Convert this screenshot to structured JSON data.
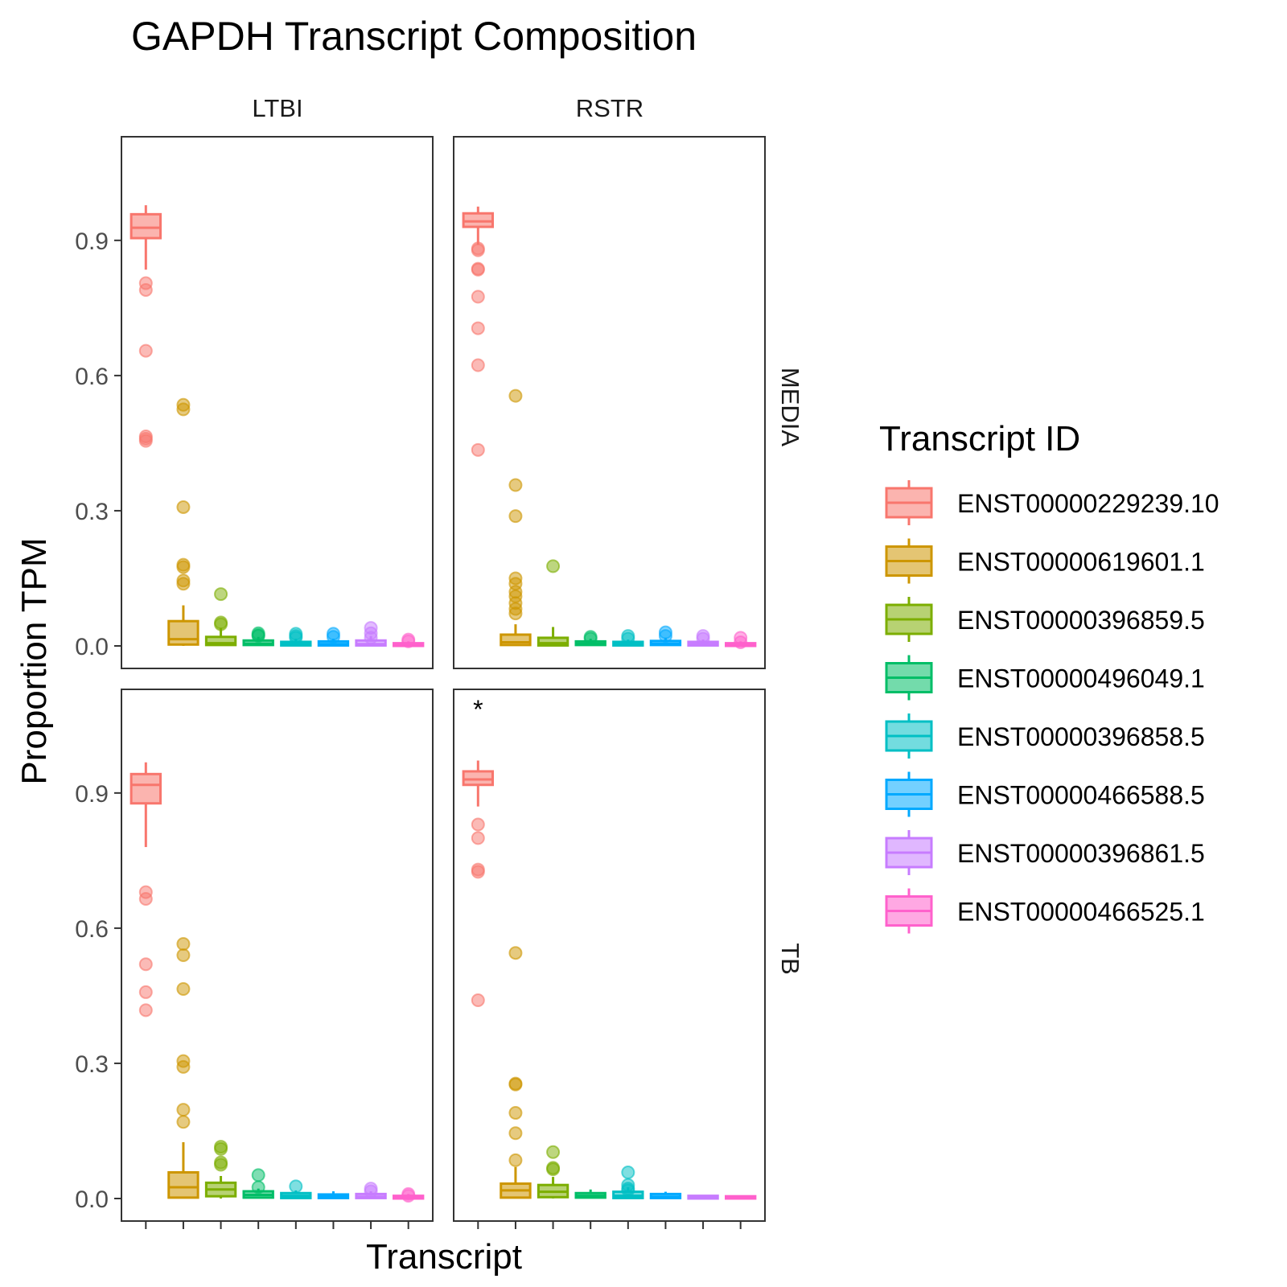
{
  "chart_data": {
    "type": "boxplot",
    "title": "GAPDH Transcript Composition",
    "xlabel": "Transcript",
    "ylabel": "Proportion TPM",
    "ylim": [
      -0.05,
      1.13
    ],
    "yticks": [
      0.0,
      0.3,
      0.6,
      0.9
    ],
    "ytick_labels": [
      "0.0",
      "0.3",
      "0.6",
      "0.9"
    ],
    "grid": false,
    "legend": {
      "title": "Transcript ID",
      "position": "right",
      "entries": [
        {
          "label": "ENST00000229239.10",
          "color": "#F8766D"
        },
        {
          "label": "ENST00000619601.1",
          "color": "#CD9600"
        },
        {
          "label": "ENST00000396859.5",
          "color": "#7CAE00"
        },
        {
          "label": "ENST00000496049.1",
          "color": "#00BE67"
        },
        {
          "label": "ENST00000396858.5",
          "color": "#00BFC4"
        },
        {
          "label": "ENST00000466588.5",
          "color": "#00A9FF"
        },
        {
          "label": "ENST00000396861.5",
          "color": "#C77CFF"
        },
        {
          "label": "ENST00000466525.1",
          "color": "#FF61CC"
        }
      ]
    },
    "facets": [
      {
        "col": "LTBI",
        "row": "MEDIA",
        "annotation": "",
        "boxes": [
          {
            "q1": 0.905,
            "median": 0.928,
            "q3": 0.958,
            "whisker_low": 0.835,
            "whisker_high": 0.978,
            "outliers": [
              0.805,
              0.79,
              0.655,
              0.465,
              0.46,
              0.455
            ]
          },
          {
            "q1": 0.003,
            "median": 0.015,
            "q3": 0.055,
            "whisker_low": 0.0,
            "whisker_high": 0.09,
            "outliers": [
              0.535,
              0.525,
              0.308,
              0.18,
              0.175,
              0.145,
              0.138
            ]
          },
          {
            "q1": 0.002,
            "median": 0.006,
            "q3": 0.02,
            "whisker_low": 0.0,
            "whisker_high": 0.04,
            "outliers": [
              0.115,
              0.052,
              0.048
            ]
          },
          {
            "q1": 0.002,
            "median": 0.005,
            "q3": 0.012,
            "whisker_low": 0.0,
            "whisker_high": 0.02,
            "outliers": [
              0.028,
              0.024,
              0.022
            ]
          },
          {
            "q1": 0.001,
            "median": 0.004,
            "q3": 0.009,
            "whisker_low": 0.0,
            "whisker_high": 0.016,
            "outliers": [
              0.027,
              0.022,
              0.018
            ]
          },
          {
            "q1": 0.001,
            "median": 0.004,
            "q3": 0.01,
            "whisker_low": 0.0,
            "whisker_high": 0.016,
            "outliers": [
              0.027,
              0.02
            ]
          },
          {
            "q1": 0.001,
            "median": 0.004,
            "q3": 0.012,
            "whisker_low": 0.0,
            "whisker_high": 0.022,
            "outliers": [
              0.04,
              0.028,
              0.018
            ]
          },
          {
            "q1": 0.0,
            "median": 0.002,
            "q3": 0.006,
            "whisker_low": 0.0,
            "whisker_high": 0.01,
            "outliers": [
              0.014,
              0.01
            ]
          }
        ]
      },
      {
        "col": "RSTR",
        "row": "MEDIA",
        "annotation": "",
        "boxes": [
          {
            "q1": 0.93,
            "median": 0.942,
            "q3": 0.96,
            "whisker_low": 0.89,
            "whisker_high": 0.975,
            "outliers": [
              0.882,
              0.878,
              0.837,
              0.835,
              0.775,
              0.705,
              0.623,
              0.435
            ]
          },
          {
            "q1": 0.002,
            "median": 0.008,
            "q3": 0.025,
            "whisker_low": 0.0,
            "whisker_high": 0.048,
            "outliers": [
              0.555,
              0.357,
              0.288,
              0.15,
              0.138,
              0.12,
              0.11,
              0.095,
              0.082,
              0.072
            ]
          },
          {
            "q1": 0.001,
            "median": 0.006,
            "q3": 0.018,
            "whisker_low": 0.0,
            "whisker_high": 0.042,
            "outliers": [
              0.177
            ]
          },
          {
            "q1": 0.002,
            "median": 0.005,
            "q3": 0.01,
            "whisker_low": 0.0,
            "whisker_high": 0.016,
            "outliers": [
              0.02,
              0.016
            ]
          },
          {
            "q1": 0.001,
            "median": 0.004,
            "q3": 0.009,
            "whisker_low": 0.0,
            "whisker_high": 0.014,
            "outliers": [
              0.022,
              0.016
            ]
          },
          {
            "q1": 0.002,
            "median": 0.005,
            "q3": 0.011,
            "whisker_low": 0.0,
            "whisker_high": 0.018,
            "outliers": [
              0.03,
              0.022
            ]
          },
          {
            "q1": 0.001,
            "median": 0.004,
            "q3": 0.009,
            "whisker_low": 0.0,
            "whisker_high": 0.014,
            "outliers": [
              0.022,
              0.016
            ]
          },
          {
            "q1": 0.0,
            "median": 0.002,
            "q3": 0.006,
            "whisker_low": 0.0,
            "whisker_high": 0.01,
            "outliers": [
              0.018,
              0.008
            ]
          }
        ]
      },
      {
        "col": "LTBI",
        "row": "TB",
        "annotation": "",
        "boxes": [
          {
            "q1": 0.877,
            "median": 0.918,
            "q3": 0.942,
            "whisker_low": 0.78,
            "whisker_high": 0.968,
            "outliers": [
              0.68,
              0.665,
              0.52,
              0.458,
              0.418
            ]
          },
          {
            "q1": 0.002,
            "median": 0.025,
            "q3": 0.058,
            "whisker_low": 0.0,
            "whisker_high": 0.125,
            "outliers": [
              0.565,
              0.54,
              0.465,
              0.305,
              0.292,
              0.197,
              0.17
            ]
          },
          {
            "q1": 0.005,
            "median": 0.02,
            "q3": 0.035,
            "whisker_low": 0.0,
            "whisker_high": 0.05,
            "outliers": [
              0.115,
              0.11,
              0.08,
              0.075
            ]
          },
          {
            "q1": 0.002,
            "median": 0.008,
            "q3": 0.016,
            "whisker_low": 0.0,
            "whisker_high": 0.022,
            "outliers": [
              0.052,
              0.025
            ]
          },
          {
            "q1": 0.001,
            "median": 0.006,
            "q3": 0.012,
            "whisker_low": 0.0,
            "whisker_high": 0.018,
            "outliers": [
              0.027
            ]
          },
          {
            "q1": 0.001,
            "median": 0.005,
            "q3": 0.009,
            "whisker_low": 0.0,
            "whisker_high": 0.016,
            "outliers": []
          },
          {
            "q1": 0.001,
            "median": 0.004,
            "q3": 0.01,
            "whisker_low": 0.0,
            "whisker_high": 0.016,
            "outliers": [
              0.022,
              0.016
            ]
          },
          {
            "q1": 0.0,
            "median": 0.002,
            "q3": 0.006,
            "whisker_low": 0.0,
            "whisker_high": 0.01,
            "outliers": [
              0.01,
              0.006
            ]
          }
        ]
      },
      {
        "col": "RSTR",
        "row": "TB",
        "annotation": "*",
        "boxes": [
          {
            "q1": 0.918,
            "median": 0.93,
            "q3": 0.948,
            "whisker_low": 0.87,
            "whisker_high": 0.972,
            "outliers": [
              0.83,
              0.8,
              0.73,
              0.725,
              0.44
            ]
          },
          {
            "q1": 0.002,
            "median": 0.018,
            "q3": 0.033,
            "whisker_low": 0.0,
            "whisker_high": 0.07,
            "outliers": [
              0.545,
              0.255,
              0.253,
              0.19,
              0.145,
              0.085
            ]
          },
          {
            "q1": 0.003,
            "median": 0.015,
            "q3": 0.03,
            "whisker_low": 0.0,
            "whisker_high": 0.048,
            "outliers": [
              0.103,
              0.068,
              0.065
            ]
          },
          {
            "q1": 0.002,
            "median": 0.006,
            "q3": 0.012,
            "whisker_low": 0.0,
            "whisker_high": 0.02,
            "outliers": []
          },
          {
            "q1": 0.001,
            "median": 0.006,
            "q3": 0.015,
            "whisker_low": 0.0,
            "whisker_high": 0.025,
            "outliers": [
              0.058,
              0.03,
              0.022,
              0.018
            ]
          },
          {
            "q1": 0.001,
            "median": 0.004,
            "q3": 0.01,
            "whisker_low": 0.0,
            "whisker_high": 0.015,
            "outliers": []
          },
          {
            "q1": 0.0,
            "median": 0.003,
            "q3": 0.006,
            "whisker_low": 0.0,
            "whisker_high": 0.008,
            "outliers": []
          },
          {
            "q1": 0.0,
            "median": 0.002,
            "q3": 0.005,
            "whisker_low": 0.0,
            "whisker_high": 0.007,
            "outliers": []
          }
        ]
      }
    ]
  }
}
